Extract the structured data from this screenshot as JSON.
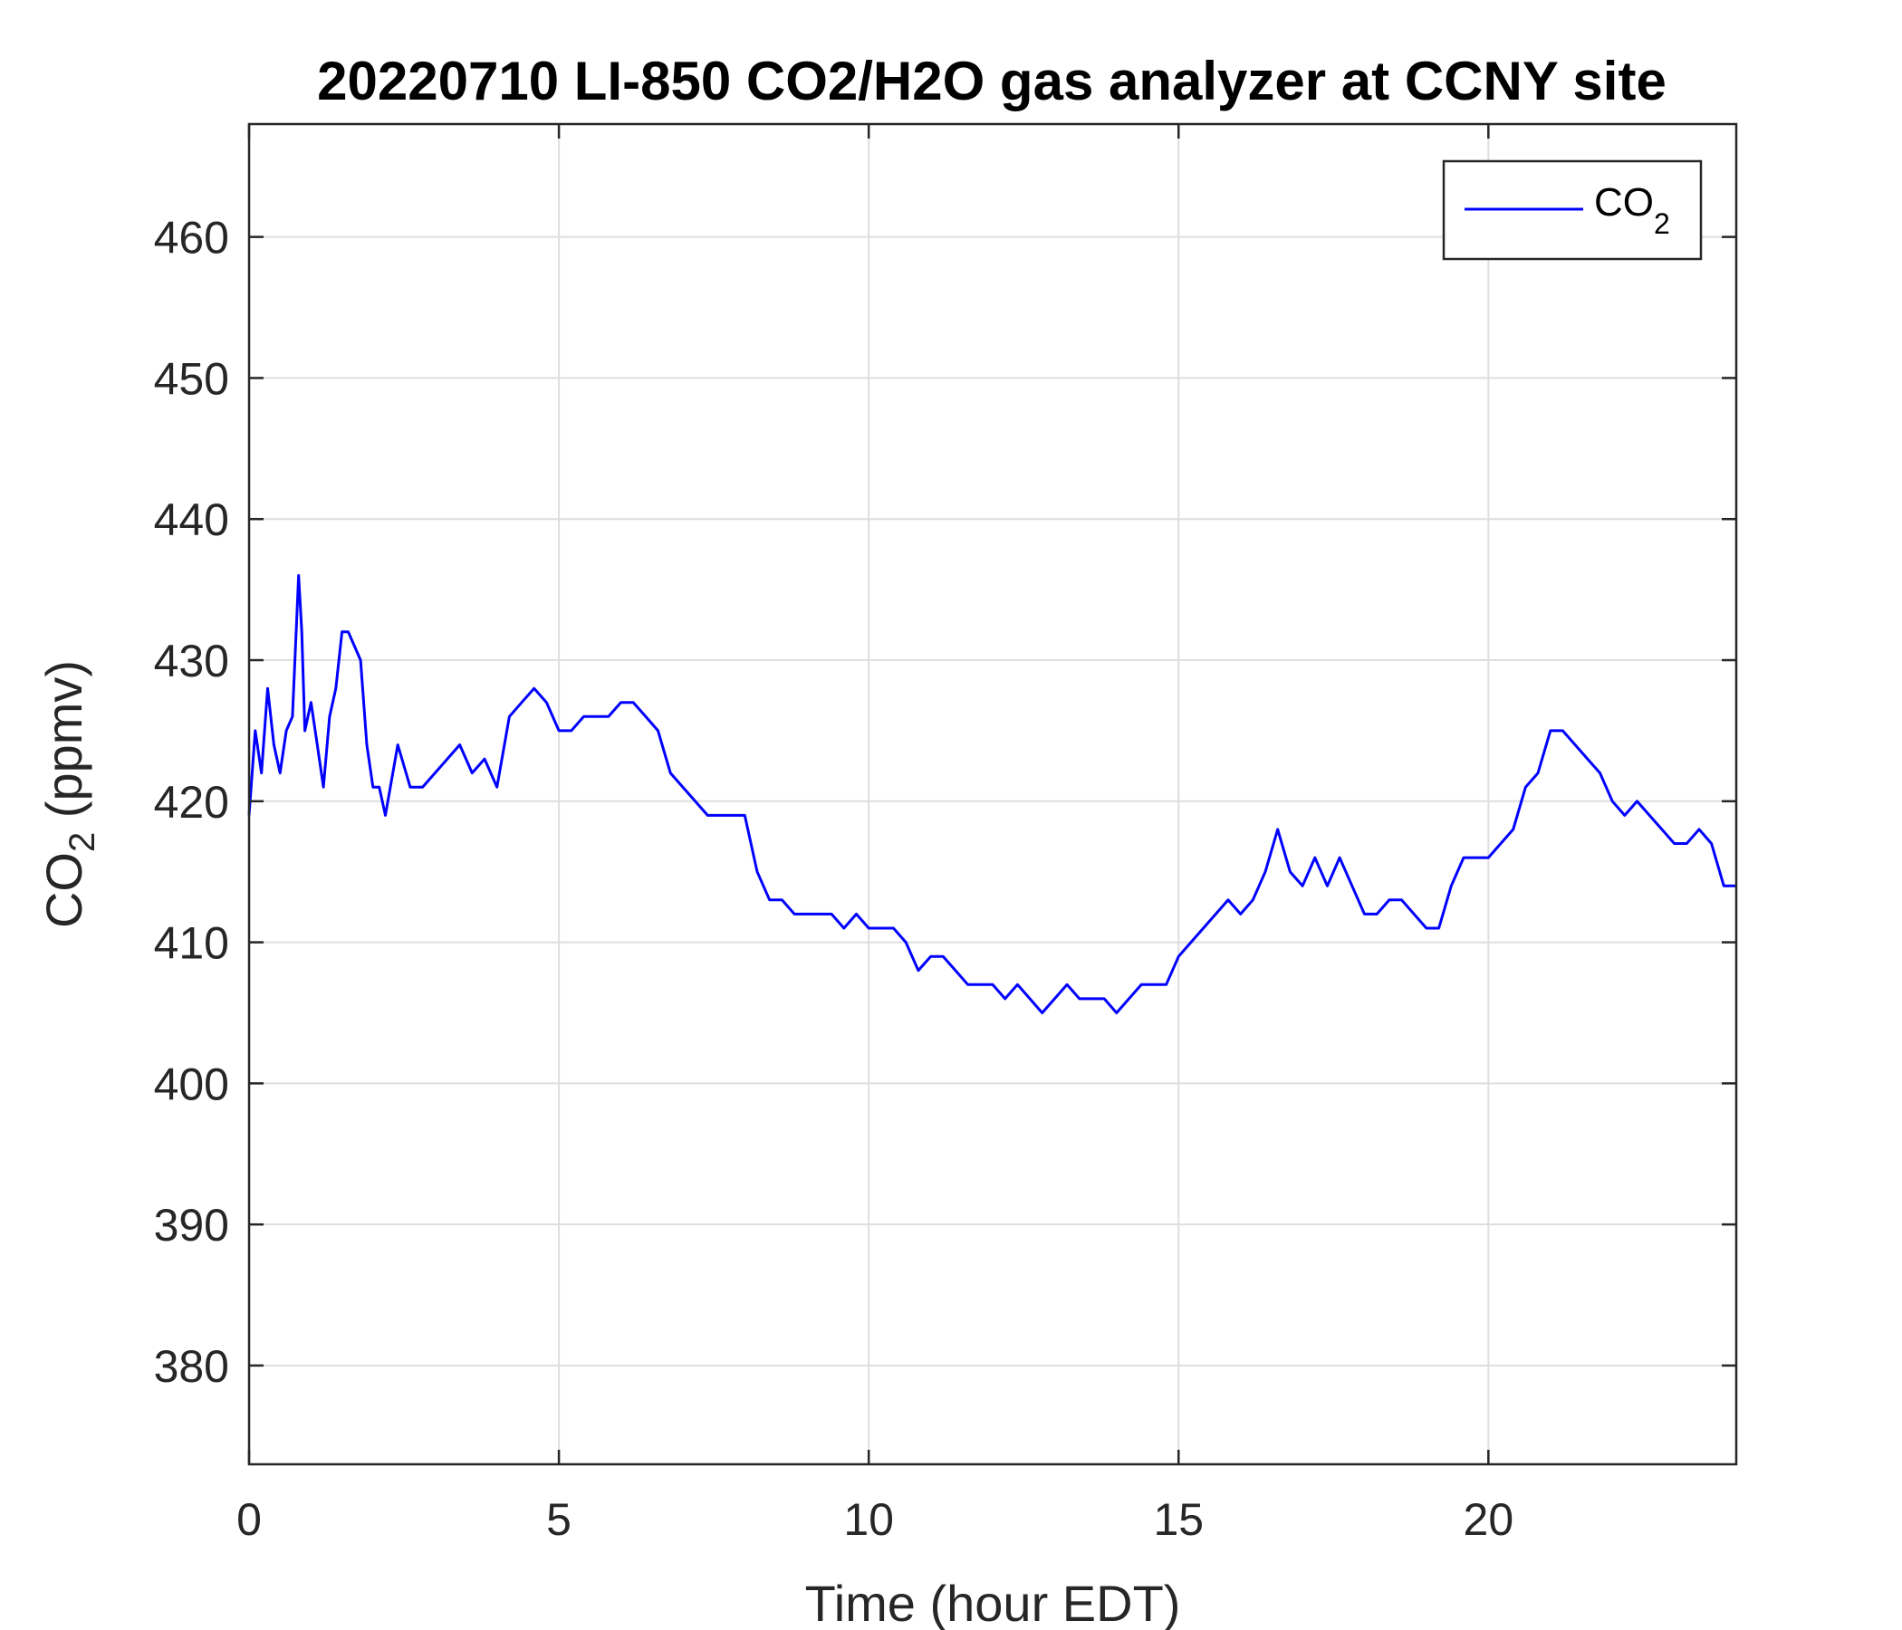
{
  "chart_data": {
    "type": "line",
    "title": "20220710 LI-850 CO2/H2O gas analyzer at CCNY site",
    "xlabel": "Time (hour EDT)",
    "ylabel": {
      "main": "CO",
      "sub": "2",
      "unit": " (ppmv)"
    },
    "xlim": [
      0,
      24
    ],
    "ylim": [
      373,
      468
    ],
    "xticks": [
      0,
      5,
      10,
      15,
      20
    ],
    "yticks": [
      380,
      390,
      400,
      410,
      420,
      430,
      440,
      450,
      460
    ],
    "grid": true,
    "legend_position": "top-right",
    "colors": {
      "series": "#0000ff",
      "grid": "#dedede",
      "axes": "#262626"
    },
    "series": [
      {
        "name": {
          "main": "CO",
          "sub": "2"
        },
        "x": [
          0.0,
          0.1,
          0.2,
          0.3,
          0.4,
          0.5,
          0.6,
          0.7,
          0.8,
          0.85,
          0.9,
          1.0,
          1.1,
          1.2,
          1.3,
          1.4,
          1.5,
          1.6,
          1.7,
          1.8,
          1.9,
          2.0,
          2.1,
          2.2,
          2.4,
          2.6,
          2.8,
          3.0,
          3.2,
          3.4,
          3.6,
          3.8,
          4.0,
          4.2,
          4.4,
          4.6,
          4.8,
          5.0,
          5.2,
          5.4,
          5.6,
          5.8,
          6.0,
          6.2,
          6.4,
          6.6,
          6.8,
          7.0,
          7.2,
          7.4,
          7.6,
          7.8,
          8.0,
          8.2,
          8.4,
          8.6,
          8.8,
          9.0,
          9.2,
          9.4,
          9.6,
          9.8,
          10.0,
          10.2,
          10.4,
          10.6,
          10.8,
          11.0,
          11.2,
          11.4,
          11.6,
          11.8,
          12.0,
          12.2,
          12.4,
          12.6,
          12.8,
          13.0,
          13.2,
          13.4,
          13.6,
          13.8,
          14.0,
          14.2,
          14.4,
          14.6,
          14.8,
          15.0,
          15.2,
          15.4,
          15.6,
          15.8,
          16.0,
          16.2,
          16.4,
          16.6,
          16.8,
          17.0,
          17.2,
          17.4,
          17.6,
          17.8,
          18.0,
          18.2,
          18.4,
          18.6,
          18.8,
          19.0,
          19.2,
          19.4,
          19.6,
          19.8,
          20.0,
          20.2,
          20.4,
          20.6,
          20.8,
          21.0,
          21.2,
          21.4,
          21.6,
          21.8,
          22.0,
          22.2,
          22.4,
          22.6,
          22.8,
          23.0,
          23.2,
          23.4,
          23.6,
          23.8,
          24.0
        ],
        "y": [
          419,
          425,
          422,
          428,
          424,
          422,
          425,
          426,
          436,
          432,
          425,
          427,
          424,
          421,
          426,
          428,
          432,
          432,
          431,
          430,
          424,
          421,
          421,
          419,
          424,
          421,
          421,
          422,
          423,
          424,
          422,
          423,
          421,
          426,
          427,
          428,
          427,
          425,
          425,
          426,
          426,
          426,
          427,
          427,
          426,
          425,
          422,
          421,
          420,
          419,
          419,
          419,
          419,
          415,
          413,
          413,
          412,
          412,
          412,
          412,
          411,
          412,
          411,
          411,
          411,
          410,
          408,
          409,
          409,
          408,
          407,
          407,
          407,
          406,
          407,
          406,
          405,
          406,
          407,
          406,
          406,
          406,
          405,
          406,
          407,
          407,
          407,
          409,
          410,
          411,
          412,
          413,
          412,
          413,
          415,
          418,
          415,
          414,
          416,
          414,
          416,
          414,
          412,
          412,
          413,
          413,
          412,
          411,
          411,
          414,
          416,
          416,
          416,
          417,
          418,
          421,
          422,
          425,
          425,
          424,
          423,
          422,
          420,
          419,
          420,
          419,
          418,
          417,
          417,
          418,
          417,
          414,
          414
        ]
      }
    ]
  }
}
